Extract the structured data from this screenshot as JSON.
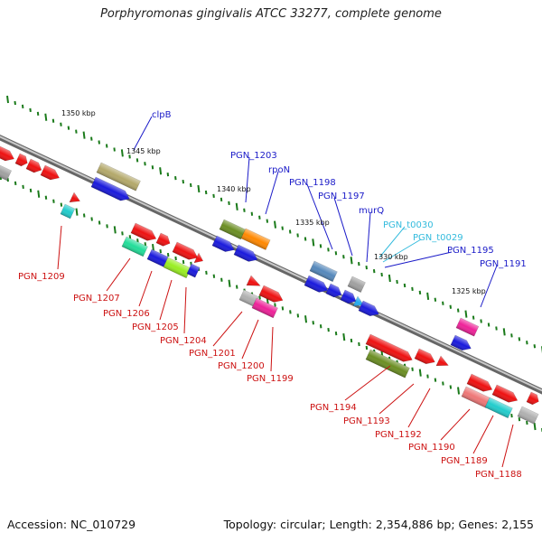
{
  "title": "Porphyromonas gingivalis ATCC 33277, complete genome",
  "footer": {
    "accession": "Accession: NC_010729",
    "topology": "Topology: circular; Length: 2,354,886 bp; Genes: 2,155"
  },
  "colors": {
    "backbone": "#808080",
    "tick": "#1a7a1a",
    "forward_label": "#1a1ac8",
    "reverse_label": "#cc1111",
    "rna_label": "#33bbdd",
    "scale_label": "#111111"
  },
  "scale_labels": [
    {
      "text": "1350 kbp",
      "kbp": 1350
    },
    {
      "text": "1345 kbp",
      "kbp": 1345
    },
    {
      "text": "1340 kbp",
      "kbp": 1340
    },
    {
      "text": "1335 kbp",
      "kbp": 1335
    },
    {
      "text": "1330 kbp",
      "kbp": 1330
    },
    {
      "text": "1325 kbp",
      "kbp": 1325
    }
  ],
  "gene_labels": [
    {
      "text": "clpB",
      "strand": "forward"
    },
    {
      "text": "PGN_1203",
      "strand": "forward"
    },
    {
      "text": "rpoN",
      "strand": "forward"
    },
    {
      "text": "PGN_1198",
      "strand": "forward"
    },
    {
      "text": "PGN_1197",
      "strand": "forward"
    },
    {
      "text": "murQ",
      "strand": "forward"
    },
    {
      "text": "PGN_t0030",
      "strand": "rna"
    },
    {
      "text": "PGN_t0029",
      "strand": "rna"
    },
    {
      "text": "PGN_1195",
      "strand": "forward"
    },
    {
      "text": "PGN_1191",
      "strand": "forward"
    },
    {
      "text": "PGN_1209",
      "strand": "reverse"
    },
    {
      "text": "PGN_1207",
      "strand": "reverse"
    },
    {
      "text": "PGN_1206",
      "strand": "reverse"
    },
    {
      "text": "PGN_1205",
      "strand": "reverse"
    },
    {
      "text": "PGN_1204",
      "strand": "reverse"
    },
    {
      "text": "PGN_1201",
      "strand": "reverse"
    },
    {
      "text": "PGN_1200",
      "strand": "reverse"
    },
    {
      "text": "PGN_1199",
      "strand": "reverse"
    },
    {
      "text": "PGN_1194",
      "strand": "reverse"
    },
    {
      "text": "PGN_1193",
      "strand": "reverse"
    },
    {
      "text": "PGN_1192",
      "strand": "reverse"
    },
    {
      "text": "PGN_1190",
      "strand": "reverse"
    },
    {
      "text": "PGN_1189",
      "strand": "reverse"
    },
    {
      "text": "PGN_1188",
      "strand": "reverse"
    }
  ]
}
